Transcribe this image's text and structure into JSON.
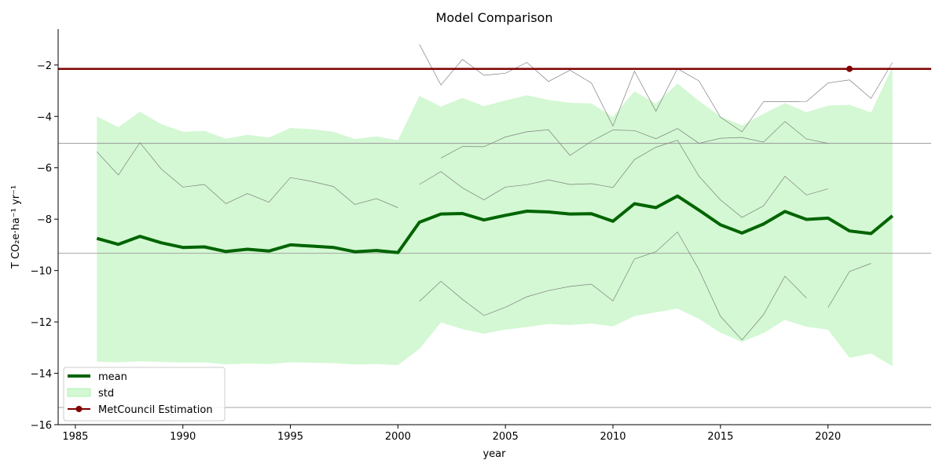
{
  "chart_data": {
    "type": "line",
    "title": "Model Comparison",
    "xlabel": "year",
    "ylabel": "T CO₂e·ha⁻¹ yr⁻¹",
    "xlim": [
      1984.2,
      2024.8
    ],
    "ylim": [
      -16.0,
      -0.6
    ],
    "xticks": [
      1985,
      1990,
      1995,
      2000,
      2005,
      2010,
      2015,
      2020
    ],
    "yticks": [
      -16,
      -14,
      -12,
      -10,
      -8,
      -6,
      -4,
      -2
    ],
    "legend_position": "lower-left",
    "grid": false,
    "legend": [
      {
        "label": "mean",
        "kind": "line",
        "color": "#006400"
      },
      {
        "label": "std",
        "kind": "patch",
        "color": "#90ee90"
      },
      {
        "label": "MetCouncil Estimation",
        "kind": "line-marker",
        "color": "#800000"
      }
    ],
    "mean": {
      "name": "mean",
      "color": "#006400",
      "x": [
        1986,
        1987,
        1988,
        1989,
        1990,
        1991,
        1992,
        1993,
        1994,
        1995,
        1996,
        1997,
        1998,
        1999,
        2000,
        2001,
        2002,
        2003,
        2004,
        2005,
        2006,
        2007,
        2008,
        2009,
        2010,
        2011,
        2012,
        2013,
        2014,
        2015,
        2016,
        2017,
        2018,
        2019,
        2020,
        2021,
        2022,
        2023
      ],
      "y": [
        -8.75,
        -8.98,
        -8.67,
        -8.92,
        -9.1,
        -9.08,
        -9.26,
        -9.17,
        -9.24,
        -9.0,
        -9.05,
        -9.1,
        -9.27,
        -9.22,
        -9.3,
        -8.12,
        -7.8,
        -7.78,
        -8.03,
        -7.85,
        -7.69,
        -7.72,
        -7.8,
        -7.79,
        -8.08,
        -7.4,
        -7.55,
        -7.1,
        -7.65,
        -8.22,
        -8.54,
        -8.19,
        -7.7,
        -8.01,
        -7.96,
        -8.46,
        -8.56,
        -7.87
      ]
    },
    "std_band": {
      "name": "std",
      "color": "#90ee90",
      "x": [
        1986,
        1987,
        1988,
        1989,
        1990,
        1991,
        1992,
        1993,
        1994,
        1995,
        1996,
        1997,
        1998,
        1999,
        2000,
        2001,
        2002,
        2003,
        2004,
        2005,
        2006,
        2007,
        2008,
        2009,
        2010,
        2011,
        2012,
        2013,
        2014,
        2015,
        2016,
        2017,
        2018,
        2019,
        2020,
        2021,
        2022,
        2023
      ],
      "upper": [
        -4.0,
        -4.42,
        -3.82,
        -4.3,
        -4.6,
        -4.56,
        -4.87,
        -4.72,
        -4.82,
        -4.45,
        -4.5,
        -4.6,
        -4.88,
        -4.78,
        -4.93,
        -3.2,
        -3.62,
        -3.28,
        -3.6,
        -3.38,
        -3.18,
        -3.36,
        -3.47,
        -3.5,
        -4.02,
        -3.02,
        -3.5,
        -2.72,
        -3.4,
        -4.0,
        -4.35,
        -3.9,
        -3.48,
        -3.84,
        -3.58,
        -3.55,
        -3.85,
        -2.08
      ],
      "lower": [
        -13.55,
        -13.57,
        -13.53,
        -13.56,
        -13.58,
        -13.58,
        -13.65,
        -13.62,
        -13.64,
        -13.57,
        -13.59,
        -13.6,
        -13.66,
        -13.64,
        -13.68,
        -13.05,
        -12.02,
        -12.28,
        -12.46,
        -12.3,
        -12.2,
        -12.08,
        -12.12,
        -12.06,
        -12.17,
        -11.77,
        -11.62,
        -11.48,
        -11.88,
        -12.42,
        -12.78,
        -12.43,
        -11.92,
        -12.19,
        -12.3,
        -13.4,
        -13.23,
        -13.72
      ]
    },
    "model_lines": [
      {
        "x": [
          1986,
          1987,
          1988,
          1989,
          1990,
          1991,
          1992,
          1993,
          1994,
          1995,
          1996,
          1997,
          1998,
          1999,
          2000
        ],
        "y": [
          -5.38,
          -6.28,
          -5.02,
          -6.05,
          -6.75,
          -6.65,
          -7.4,
          -7.0,
          -7.34,
          -6.38,
          -6.53,
          -6.73,
          -7.43,
          -7.2,
          -7.55
        ]
      },
      {
        "x": [
          2001,
          2002,
          2003,
          2004,
          2005,
          2006,
          2007,
          2008,
          2009,
          2010,
          2011,
          2012,
          2013,
          2014,
          2015,
          2016,
          2017,
          2018,
          2019,
          2020,
          2021,
          2022,
          2023
        ],
        "y": [
          -1.2,
          -2.78,
          -1.78,
          -2.4,
          -2.32,
          -1.9,
          -2.64,
          -2.2,
          -2.7,
          -4.38,
          -2.24,
          -3.8,
          -2.14,
          -2.62,
          -4.03,
          -4.6,
          -3.43,
          -3.43,
          -3.42,
          -2.7,
          -2.58,
          -3.3,
          -1.9
        ]
      },
      {
        "x": [
          2002,
          2003,
          2004,
          2005,
          2006,
          2007,
          2008,
          2009,
          2010,
          2011,
          2012,
          2013,
          2014,
          2015,
          2016,
          2017,
          2018,
          2019,
          2020
        ],
        "y": [
          -5.62,
          -5.17,
          -5.18,
          -4.8,
          -4.6,
          -4.52,
          -5.52,
          -4.97,
          -4.53,
          -4.55,
          -4.87,
          -4.47,
          -5.05,
          -4.85,
          -4.82,
          -5.0,
          -4.2,
          -4.88,
          -5.05
        ]
      },
      {
        "x": [
          2001,
          2002,
          2003,
          2004,
          2005,
          2006,
          2007,
          2008,
          2009,
          2010,
          2011,
          2012,
          2013,
          2014,
          2015,
          2016,
          2017,
          2018,
          2019,
          2020
        ],
        "y": [
          -6.65,
          -6.15,
          -6.78,
          -7.25,
          -6.75,
          -6.66,
          -6.47,
          -6.65,
          -6.62,
          -6.77,
          -5.68,
          -5.2,
          -4.93,
          -6.33,
          -7.25,
          -7.93,
          -7.48,
          -6.33,
          -7.06,
          -6.82
        ]
      },
      {
        "x": [
          2001,
          2002,
          2003,
          2004,
          2005,
          2006,
          2007,
          2008,
          2009,
          2010,
          2011,
          2012,
          2013,
          2014,
          2015,
          2016,
          2017,
          2018,
          2019
        ],
        "y": [
          -11.2,
          -10.42,
          -11.12,
          -11.75,
          -11.43,
          -11.02,
          -10.78,
          -10.62,
          -10.53,
          -11.18,
          -9.55,
          -9.27,
          -8.5,
          -9.97,
          -11.78,
          -12.7,
          -11.72,
          -10.22,
          -11.07
        ]
      },
      {
        "x": [
          2020,
          2021,
          2022
        ],
        "y": [
          -11.44,
          -10.04,
          -9.72
        ]
      }
    ],
    "hlines": [
      -5.05,
      -9.33,
      -15.33
    ],
    "metcouncil": {
      "name": "MetCouncil Estimation",
      "color": "#800000",
      "y": -2.15,
      "marker_x": 2021
    }
  }
}
